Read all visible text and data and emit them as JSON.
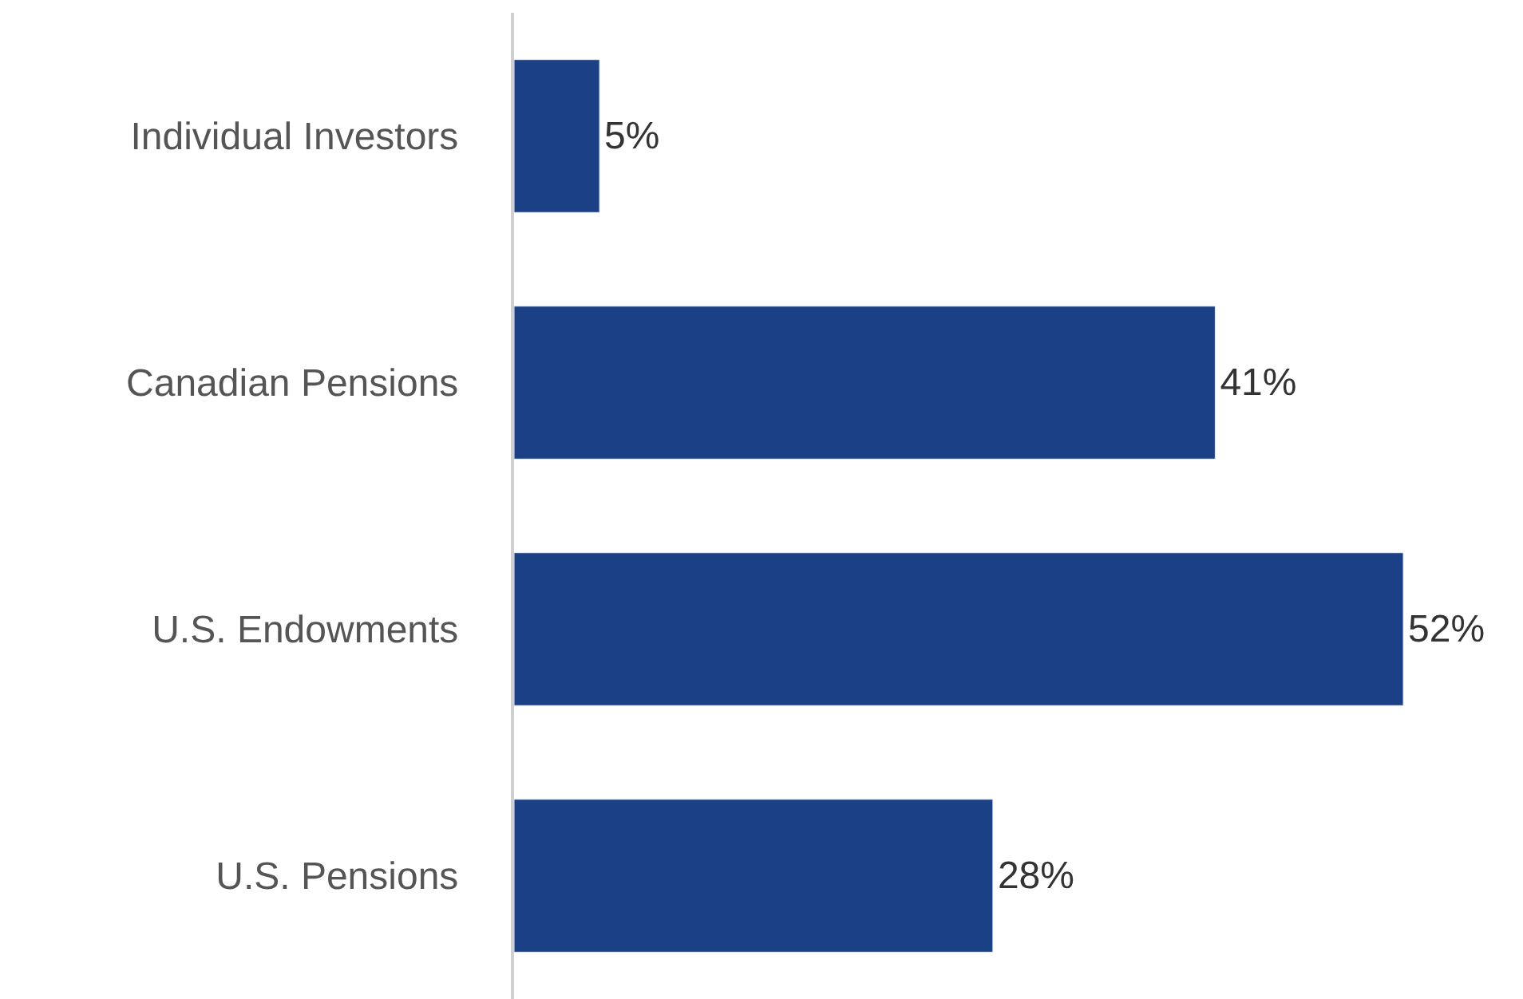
{
  "chart_data": {
    "type": "bar",
    "orientation": "horizontal",
    "categories": [
      "Individual Investors",
      "Canadian Pensions",
      "U.S. Endowments",
      "U.S. Pensions"
    ],
    "values": [
      5,
      41,
      52,
      28
    ],
    "value_labels": [
      "5%",
      "41%",
      "52%",
      "28%"
    ],
    "color": "#1b4086",
    "xlim": [
      0,
      59
    ],
    "tick_labels": "y",
    "legend": false
  }
}
